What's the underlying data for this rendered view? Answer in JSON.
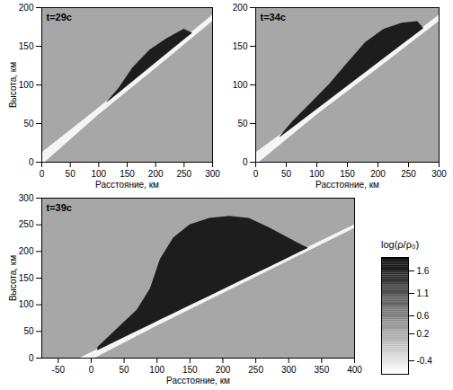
{
  "chart_data": {
    "type": "density_map",
    "colorbar": {
      "label": "log(ρ/ρ₀)",
      "range": [
        -0.7,
        1.9
      ],
      "ticks": [
        1.6,
        1.1,
        0.6,
        0.2,
        -0.4
      ]
    },
    "panels": [
      {
        "title": "t=29с",
        "xlabel": "Расстояние, км",
        "ylabel": "Высота, км",
        "xlim": [
          0,
          300
        ],
        "xticks": [
          0,
          50,
          100,
          150,
          200,
          250,
          300
        ],
        "ylim": [
          0,
          200
        ],
        "yticks": [
          0,
          50,
          100,
          150,
          200
        ],
        "background": 0.2,
        "regions": [
          {
            "value": -0.6,
            "x": [
              0,
              100,
              200,
              300
            ],
            "lower": [
              -4,
              61,
              121,
              182
            ],
            "upper": [
              12,
              70,
              130,
              190
            ]
          },
          {
            "value": 1.6,
            "x": [
              115,
              135,
              160,
              190,
              220,
              250,
              265
            ],
            "lower": [
              77,
              89,
              104,
              122,
              140,
              158,
              167
            ],
            "upper": [
              78,
              95,
              122,
              145,
              160,
              172,
              167
            ]
          }
        ]
      },
      {
        "title": "t=34с",
        "xlabel": "Расстояние, км",
        "xlim": [
          0,
          300
        ],
        "xticks": [
          0,
          50,
          100,
          150,
          200,
          250,
          300
        ],
        "ylim": [
          0,
          200
        ],
        "yticks": [
          0,
          50,
          100,
          150,
          200
        ],
        "background": 0.2,
        "regions": [
          {
            "value": -0.6,
            "x": [
              0,
              100,
              200,
              300
            ],
            "lower": [
              -4,
              61,
              121,
              182
            ],
            "upper": [
              12,
              70,
              130,
              190
            ]
          },
          {
            "value": 1.6,
            "x": [
              40,
              60,
              90,
              120,
              150,
              180,
              210,
              240,
              265,
              275
            ],
            "lower": [
              32,
              44,
              62,
              80,
              98,
              116,
              134,
              152,
              167,
              173
            ],
            "upper": [
              33,
              52,
              76,
              100,
              128,
              155,
              172,
              180,
              182,
              173
            ]
          }
        ]
      },
      {
        "title": "t=39с",
        "xlabel": "Расстояние, км",
        "ylabel": "Высота, км",
        "xlim": [
          -75,
          400
        ],
        "xticks": [
          -50,
          0,
          50,
          100,
          150,
          200,
          250,
          300,
          350,
          400
        ],
        "ylim": [
          0,
          300
        ],
        "yticks": [
          0,
          50,
          100,
          150,
          200,
          250,
          300
        ],
        "background": 0.2,
        "regions": [
          {
            "value": -0.6,
            "x": [
              -75,
              0,
              100,
              200,
              300,
              400
            ],
            "lower": [
              -50,
              -4,
              60,
              121,
              182,
              243
            ],
            "upper": [
              -35,
              10,
              70,
              130,
              190,
              250
            ]
          },
          {
            "value": 1.6,
            "x": [
              10,
              40,
              70,
              90,
              105,
              125,
              150,
              180,
              210,
              240,
              270,
              300,
              320,
              330
            ],
            "lower": [
              14,
              32,
              50,
              62,
              71,
              83,
              98,
              116,
              134,
              152,
              170,
              188,
              200,
              206
            ],
            "upper": [
              20,
              55,
              90,
              130,
              185,
              225,
              250,
              262,
              266,
              262,
              245,
              225,
              212,
              206
            ]
          }
        ]
      }
    ]
  }
}
